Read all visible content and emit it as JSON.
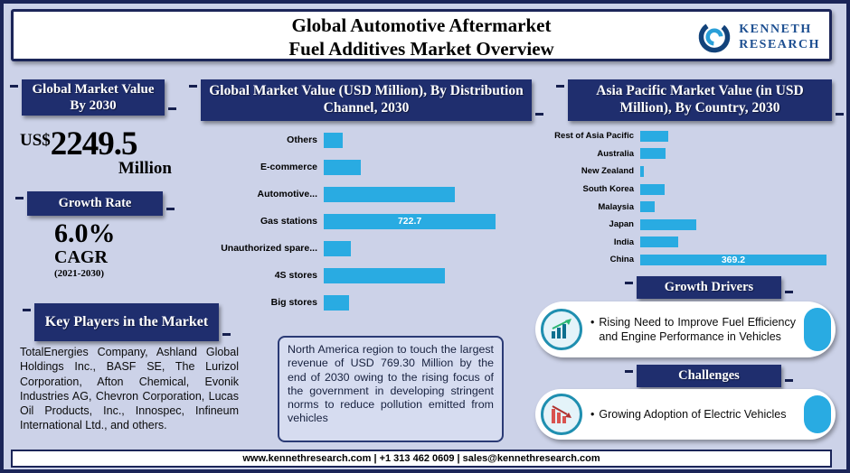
{
  "header": {
    "title_line1": "Global Automotive Aftermarket",
    "title_line2": "Fuel Additives Market Overview",
    "logo_line1": "KENNETH",
    "logo_line2": "RESEARCH"
  },
  "left": {
    "value_badge": "Global Market Value By 2030",
    "currency": "US$",
    "value": "2249.5",
    "unit": "Million",
    "growth_badge": "Growth Rate",
    "growth_value": "6.0%",
    "growth_cagr": "CAGR",
    "growth_period": "(2021-2030)",
    "players_badge": "Key Players in the Market",
    "players_text": "TotalEnergies Company, Ashland Global Holdings Inc., BASF SE, The Lurizol Corporation, Afton Chemical, Evonik Industries AG, Chevron Corporation, Lucas Oil Products, Inc., Innospec, Infineum International Ltd., and others."
  },
  "middle": {
    "chart_badge": "Global Market Value (USD Million), By Distribution Channel, 2030",
    "note": "North America region to touch the largest revenue of USD 769.30 Million by the end of 2030 owing to the rising focus of the government in developing stringent norms to reduce pollution emitted from vehicles"
  },
  "right": {
    "chart_badge": "Asia Pacific Market Value (in USD Million), By Country, 2030",
    "growth_badge": "Growth Drivers",
    "growth_bullet": "•",
    "growth_text": "Rising Need to Improve Fuel Efficiency and Engine Performance in Vehicles",
    "challenges_badge": "Challenges",
    "challenges_bullet": "•",
    "challenges_text": "Growing Adoption of Electric Vehicles"
  },
  "footer": {
    "text": "www.kennethresearch.com | +1 313 462 0609 | sales@kennethresearch.com"
  },
  "colors": {
    "navy": "#1f2e6e",
    "bar_blue": "#29abe2",
    "background": "#ccd2e8"
  },
  "chart_data": [
    {
      "type": "bar",
      "orientation": "horizontal",
      "title": "Global Market Value (USD Million), By Distribution Channel, 2030",
      "categories": [
        "Others",
        "E-commerce",
        "Automotive...",
        "Gas stations",
        "Unauthorized spare...",
        "4S stores",
        "Big stores"
      ],
      "values": [
        80,
        155,
        550,
        722.7,
        115,
        510,
        108
      ],
      "bar_labels": [
        null,
        null,
        null,
        "722.7",
        null,
        null,
        null
      ],
      "xmax": 760,
      "xlabel": "USD Million",
      "grid": false,
      "legend": false
    },
    {
      "type": "bar",
      "orientation": "horizontal",
      "title": "Asia Pacific Market Value (in USD Million), By Country, 2030",
      "categories": [
        "Rest of Asia Pacific",
        "Australia",
        "New Zealand",
        "South Korea",
        "Malaysia",
        "Japan",
        "India",
        "China"
      ],
      "values": [
        56,
        50,
        7,
        48,
        28,
        112,
        76,
        369.2
      ],
      "bar_labels": [
        null,
        null,
        null,
        null,
        null,
        null,
        null,
        "369.2"
      ],
      "xmax": 380,
      "xlabel": "USD Million",
      "grid": false,
      "legend": false
    }
  ]
}
